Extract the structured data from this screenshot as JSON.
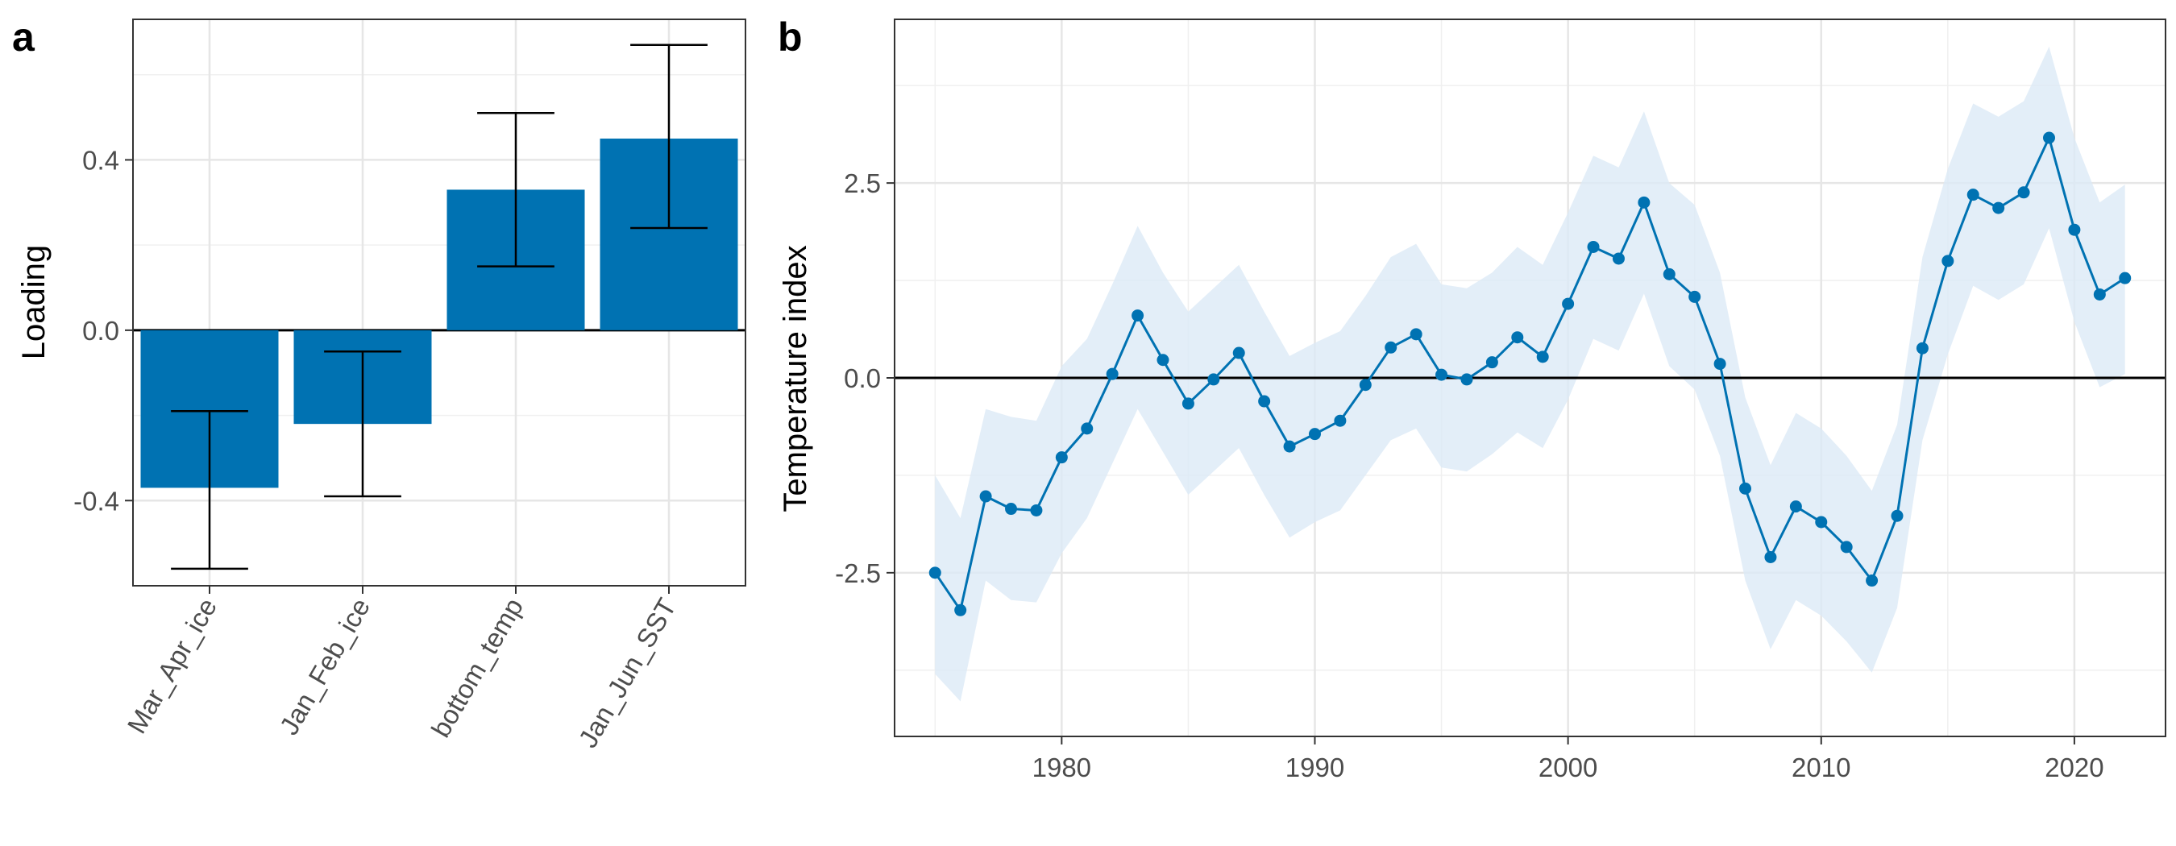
{
  "chart_data": [
    {
      "panel": "a",
      "type": "bar",
      "categories": [
        "Mar_Apr_ice",
        "Jan_Feb_ice",
        "bottom_temp",
        "Jan_Jun_SST"
      ],
      "values": [
        -0.37,
        -0.22,
        0.33,
        0.45
      ],
      "error_low": [
        -0.56,
        -0.39,
        0.15,
        0.24
      ],
      "error_high": [
        -0.19,
        -0.05,
        0.51,
        0.67
      ],
      "xlabel": "",
      "ylabel": "Loading",
      "ylim": [
        -0.6,
        0.73
      ],
      "yticks": [
        -0.4,
        0.0,
        0.4
      ],
      "ytick_labels": [
        "-0.4",
        "0.0",
        "0.4"
      ],
      "grid": true,
      "reference_line": 0,
      "bar_color": "#0072B2"
    },
    {
      "panel": "b",
      "type": "line",
      "x": [
        1975,
        1976,
        1977,
        1978,
        1979,
        1980,
        1981,
        1982,
        1983,
        1984,
        1985,
        1986,
        1987,
        1988,
        1989,
        1990,
        1991,
        1992,
        1993,
        1994,
        1995,
        1996,
        1997,
        1998,
        1999,
        2000,
        2001,
        2002,
        2003,
        2004,
        2005,
        2006,
        2007,
        2008,
        2009,
        2010,
        2011,
        2012,
        2013,
        2014,
        2015,
        2016,
        2017,
        2018,
        2019,
        2020,
        2021,
        2022
      ],
      "y": [
        -2.5,
        -2.98,
        -1.52,
        -1.68,
        -1.7,
        -1.02,
        -0.65,
        0.05,
        0.8,
        0.23,
        -0.33,
        -0.02,
        0.32,
        -0.3,
        -0.88,
        -0.72,
        -0.55,
        -0.09,
        0.39,
        0.56,
        0.04,
        -0.02,
        0.2,
        0.52,
        0.27,
        0.95,
        1.68,
        1.53,
        2.25,
        1.33,
        1.04,
        0.18,
        -1.42,
        -2.3,
        -1.65,
        -1.85,
        -2.17,
        -2.6,
        -1.77,
        0.38,
        1.5,
        2.35,
        2.18,
        2.38,
        3.08,
        1.9,
        1.07,
        1.28
      ],
      "ci_lower": [
        -3.8,
        -4.15,
        -2.6,
        -2.85,
        -2.88,
        -2.25,
        -1.8,
        -1.1,
        -0.4,
        -0.95,
        -1.5,
        -1.2,
        -0.9,
        -1.5,
        -2.05,
        -1.85,
        -1.7,
        -1.25,
        -0.8,
        -0.65,
        -1.15,
        -1.2,
        -0.98,
        -0.7,
        -0.9,
        -0.28,
        0.5,
        0.35,
        1.08,
        0.15,
        -0.15,
        -1.0,
        -2.6,
        -3.48,
        -2.85,
        -3.05,
        -3.38,
        -3.78,
        -2.95,
        -0.8,
        0.3,
        1.18,
        1.0,
        1.2,
        1.92,
        0.72,
        -0.12,
        0.05
      ],
      "ci_upper": [
        -1.25,
        -1.8,
        -0.4,
        -0.5,
        -0.55,
        0.15,
        0.5,
        1.2,
        1.95,
        1.35,
        0.85,
        1.15,
        1.45,
        0.85,
        0.28,
        0.45,
        0.6,
        1.05,
        1.55,
        1.72,
        1.2,
        1.15,
        1.35,
        1.68,
        1.45,
        2.12,
        2.85,
        2.7,
        3.42,
        2.5,
        2.22,
        1.35,
        -0.25,
        -1.12,
        -0.45,
        -0.65,
        -1.0,
        -1.45,
        -0.6,
        1.55,
        2.68,
        3.52,
        3.35,
        3.55,
        4.25,
        3.08,
        2.25,
        2.48
      ],
      "xlabel": "",
      "ylabel": "Temperature index",
      "xlim": [
        1973.4,
        2023.6
      ],
      "ylim": [
        -4.6,
        4.6
      ],
      "xticks": [
        1980,
        1990,
        2000,
        2010,
        2020
      ],
      "xtick_labels": [
        "1980",
        "1990",
        "2000",
        "2010",
        "2020"
      ],
      "yticks": [
        -2.5,
        0.0,
        2.5
      ],
      "ytick_labels": [
        "-2.5",
        "0.0",
        "2.5"
      ],
      "grid": true,
      "reference_line": 0,
      "line_color": "#0072B2",
      "ribbon_color": "#DCEAF6"
    }
  ],
  "panels": {
    "a": {
      "tag": "a"
    },
    "b": {
      "tag": "b"
    }
  }
}
